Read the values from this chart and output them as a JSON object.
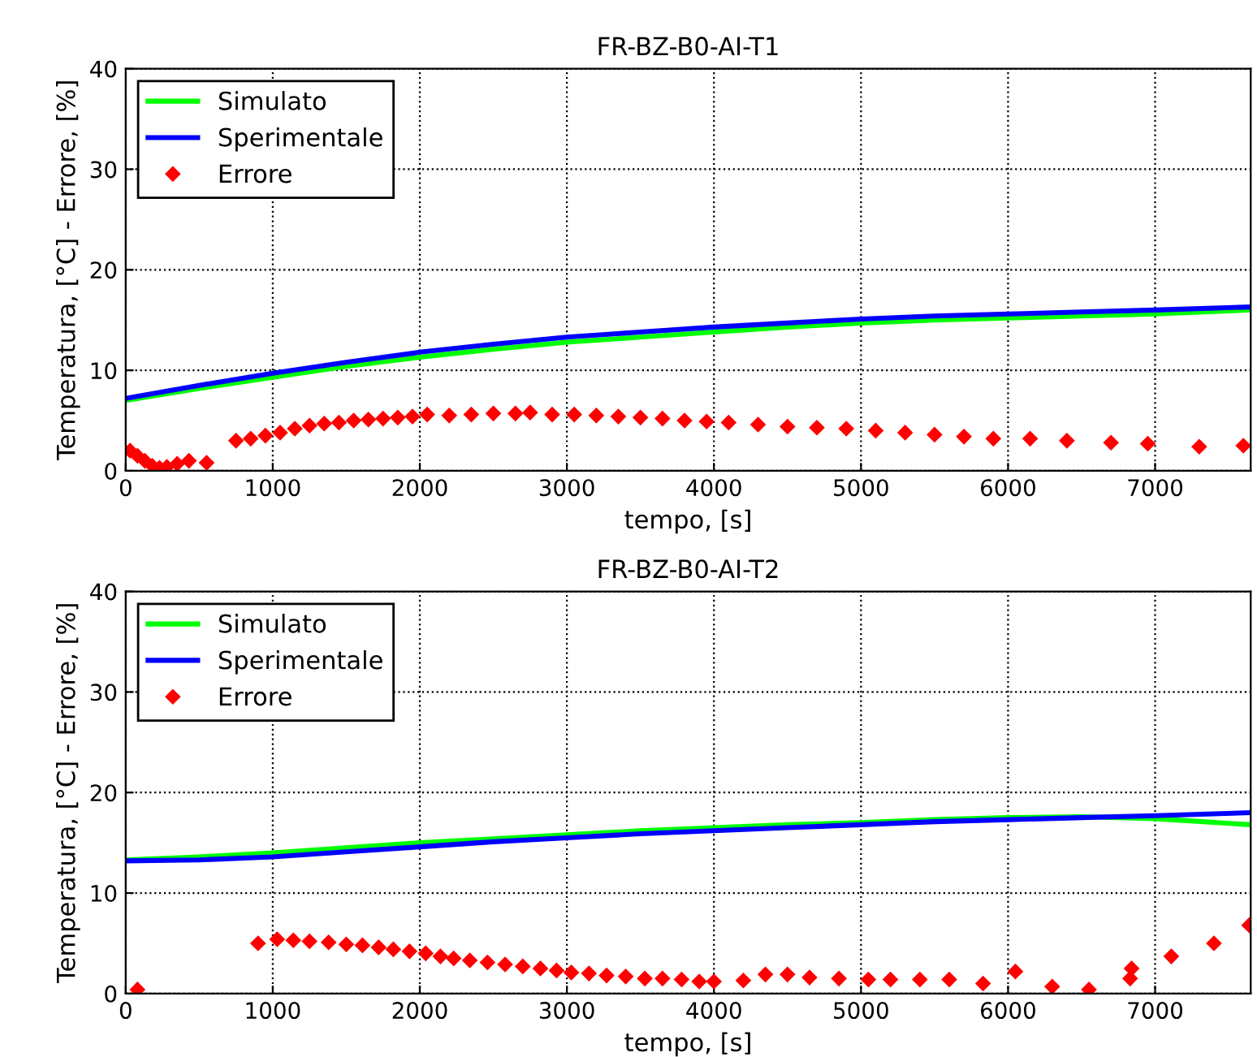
{
  "chart_data": [
    {
      "type": "line",
      "title": "FR-BZ-B0-AI-T1",
      "xlabel": "tempo, [s]",
      "ylabel": "Temperatura, [°C] - Errore, [%]",
      "xlim": [
        0,
        7650
      ],
      "ylim": [
        0,
        40
      ],
      "xticks": [
        0,
        1000,
        2000,
        3000,
        4000,
        5000,
        6000,
        7000
      ],
      "yticks": [
        0,
        10,
        20,
        30,
        40
      ],
      "grid": true,
      "legend": "top left",
      "series": [
        {
          "name": "Simulato",
          "color": "#00ff00",
          "x": [
            0,
            500,
            1000,
            1500,
            2000,
            2500,
            3000,
            3500,
            4000,
            4500,
            5000,
            5500,
            6000,
            6500,
            7000,
            7650
          ],
          "values": [
            7.0,
            8.2,
            9.3,
            10.4,
            11.3,
            12.1,
            12.8,
            13.3,
            13.8,
            14.3,
            14.7,
            15.0,
            15.2,
            15.4,
            15.6,
            16.0
          ]
        },
        {
          "name": "Sperimentale",
          "color": "#0000ff",
          "x": [
            0,
            500,
            1000,
            1500,
            2000,
            2500,
            3000,
            3500,
            4000,
            4500,
            5000,
            5500,
            6000,
            6500,
            7000,
            7650
          ],
          "values": [
            7.2,
            8.5,
            9.7,
            10.8,
            11.8,
            12.6,
            13.3,
            13.8,
            14.3,
            14.7,
            15.1,
            15.4,
            15.6,
            15.8,
            16.0,
            16.3
          ]
        },
        {
          "name": "Errore",
          "color": "#ff0000",
          "type": "scatter",
          "marker": "diamond",
          "x": [
            30,
            80,
            130,
            180,
            230,
            280,
            350,
            430,
            550,
            750,
            850,
            950,
            1050,
            1150,
            1250,
            1350,
            1450,
            1550,
            1650,
            1750,
            1850,
            1950,
            2050,
            2200,
            2350,
            2500,
            2650,
            2750,
            2900,
            3050,
            3200,
            3350,
            3500,
            3650,
            3800,
            3950,
            4100,
            4300,
            4500,
            4700,
            4900,
            5100,
            5300,
            5500,
            5700,
            5900,
            6150,
            6400,
            6700,
            6950,
            7300,
            7600
          ],
          "values": [
            2.0,
            1.5,
            1.0,
            0.5,
            0.3,
            0.4,
            0.7,
            1.0,
            0.8,
            3.0,
            3.2,
            3.5,
            3.8,
            4.2,
            4.5,
            4.7,
            4.8,
            5.0,
            5.1,
            5.2,
            5.3,
            5.4,
            5.6,
            5.5,
            5.6,
            5.7,
            5.7,
            5.8,
            5.6,
            5.6,
            5.5,
            5.4,
            5.3,
            5.2,
            5.0,
            4.9,
            4.8,
            4.6,
            4.4,
            4.3,
            4.2,
            4.0,
            3.8,
            3.6,
            3.4,
            3.2,
            3.2,
            3.0,
            2.8,
            2.7,
            2.4,
            2.5
          ]
        }
      ]
    },
    {
      "type": "line",
      "title": "FR-BZ-B0-AI-T2",
      "xlabel": "tempo, [s]",
      "ylabel": "Temperatura, [°C] - Errore, [%]",
      "xlim": [
        0,
        7650
      ],
      "ylim": [
        0,
        40
      ],
      "xticks": [
        0,
        1000,
        2000,
        3000,
        4000,
        5000,
        6000,
        7000
      ],
      "yticks": [
        0,
        10,
        20,
        30,
        40
      ],
      "grid": true,
      "legend": "top left",
      "series": [
        {
          "name": "Simulato",
          "color": "#00ff00",
          "x": [
            0,
            500,
            1000,
            1500,
            2000,
            2500,
            3000,
            3500,
            4000,
            4500,
            5000,
            5500,
            6000,
            6500,
            7000,
            7650
          ],
          "values": [
            13.3,
            13.6,
            14.0,
            14.5,
            15.0,
            15.4,
            15.8,
            16.2,
            16.5,
            16.8,
            17.0,
            17.3,
            17.5,
            17.6,
            17.4,
            16.8
          ]
        },
        {
          "name": "Sperimentale",
          "color": "#0000ff",
          "x": [
            0,
            500,
            1000,
            1500,
            2000,
            2500,
            3000,
            3500,
            4000,
            4500,
            5000,
            5500,
            6000,
            6500,
            7000,
            7650
          ],
          "values": [
            13.2,
            13.3,
            13.6,
            14.1,
            14.6,
            15.1,
            15.5,
            15.9,
            16.2,
            16.5,
            16.8,
            17.1,
            17.3,
            17.5,
            17.7,
            18.0
          ]
        },
        {
          "name": "Errore",
          "color": "#ff0000",
          "type": "scatter",
          "marker": "diamond",
          "x": [
            80,
            900,
            1030,
            1140,
            1250,
            1380,
            1500,
            1610,
            1720,
            1820,
            1930,
            2040,
            2140,
            2230,
            2340,
            2460,
            2580,
            2700,
            2820,
            2930,
            3030,
            3150,
            3270,
            3400,
            3530,
            3650,
            3780,
            3900,
            4000,
            4200,
            4350,
            4500,
            4650,
            4850,
            5050,
            5200,
            5400,
            5600,
            5830,
            6050,
            6300,
            6550,
            6830,
            6840,
            7110,
            7400,
            7640
          ],
          "values": [
            0.4,
            5.0,
            5.4,
            5.3,
            5.2,
            5.1,
            4.9,
            4.8,
            4.6,
            4.4,
            4.2,
            4.0,
            3.7,
            3.5,
            3.3,
            3.1,
            2.9,
            2.7,
            2.5,
            2.3,
            2.1,
            2.0,
            1.8,
            1.7,
            1.5,
            1.5,
            1.4,
            1.2,
            1.2,
            1.3,
            1.9,
            1.9,
            1.6,
            1.5,
            1.4,
            1.4,
            1.4,
            1.4,
            1.0,
            2.2,
            0.7,
            0.4,
            1.5,
            2.5,
            3.7,
            5.0,
            6.8
          ]
        }
      ]
    }
  ]
}
